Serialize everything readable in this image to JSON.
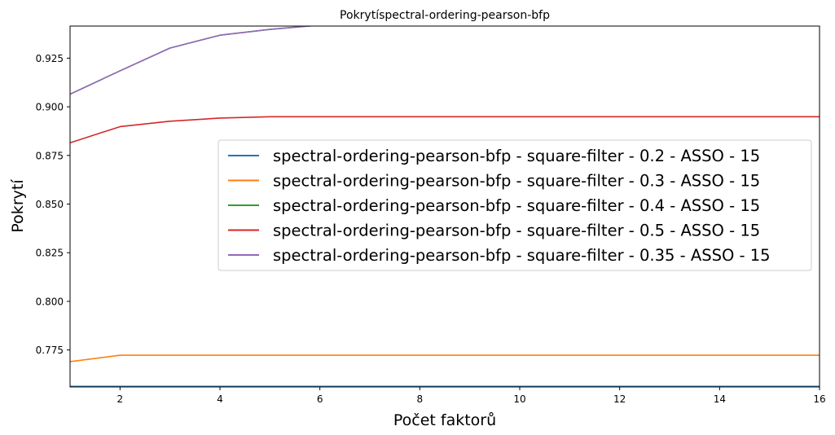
{
  "chart_data": {
    "type": "line",
    "title": "Pokrytíspectral-ordering-pearson-bfp",
    "xlabel": "Počet faktorů",
    "ylabel": "Pokrytí",
    "xlim": [
      1,
      16
    ],
    "ylim": [
      0.756,
      0.9415
    ],
    "xticks": [
      2,
      4,
      6,
      8,
      10,
      12,
      14,
      16
    ],
    "yticks": [
      0.775,
      0.8,
      0.825,
      0.85,
      0.875,
      0.9,
      0.925
    ],
    "ytick_labels": [
      "0.775",
      "0.800",
      "0.825",
      "0.850",
      "0.875",
      "0.900",
      "0.925"
    ],
    "xtick_labels": [
      "2",
      "4",
      "6",
      "8",
      "10",
      "12",
      "14",
      "16"
    ],
    "grid": false,
    "legend_placement": "center-right",
    "x": [
      1,
      2,
      3,
      4,
      5,
      6,
      7,
      8,
      9,
      10,
      11,
      12,
      13,
      14,
      15,
      16
    ],
    "series": [
      {
        "name": "spectral-ordering-pearson-bfp - square-filter - 0.2 - ASSO - 15",
        "color": "#1f77b4",
        "values": [
          0.7563,
          0.7563,
          0.7563,
          0.7563,
          0.7563,
          0.7563,
          0.7563,
          0.7563,
          0.7563,
          0.7563,
          0.7563,
          0.7563,
          0.7563,
          0.7563,
          0.7563,
          0.7563
        ]
      },
      {
        "name": "spectral-ordering-pearson-bfp - square-filter - 0.3 - ASSO - 15",
        "color": "#ff7f0e",
        "values": [
          0.769,
          0.7723,
          0.7723,
          0.7723,
          0.7723,
          0.7723,
          0.7723,
          0.7723,
          0.7723,
          0.7723,
          0.7723,
          0.7723,
          0.7723,
          0.7723,
          0.7723,
          0.7723
        ]
      },
      {
        "name": "spectral-ordering-pearson-bfp - square-filter - 0.4 - ASSO - 15",
        "color": "#2ca02c",
        "values": [
          0.9065,
          0.9185,
          0.9302,
          0.9368,
          0.9398,
          0.942,
          0.944,
          0.946,
          0.947,
          0.948,
          0.9485,
          0.949,
          0.9495,
          0.95,
          0.95,
          0.95
        ]
      },
      {
        "name": "spectral-ordering-pearson-bfp - square-filter - 0.5 - ASSO - 15",
        "color": "#d62728",
        "values": [
          0.8815,
          0.8898,
          0.8926,
          0.8942,
          0.8949,
          0.8949,
          0.8949,
          0.8949,
          0.8949,
          0.8949,
          0.8949,
          0.8949,
          0.8949,
          0.8949,
          0.8949,
          0.8949
        ]
      },
      {
        "name": "spectral-ordering-pearson-bfp - square-filter - 0.35 - ASSO - 15",
        "color": "#9467bd",
        "values": [
          0.9065,
          0.9185,
          0.9302,
          0.9368,
          0.9398,
          0.942,
          0.944,
          0.946,
          0.947,
          0.948,
          0.9485,
          0.949,
          0.9495,
          0.95,
          0.95,
          0.95
        ]
      }
    ]
  }
}
